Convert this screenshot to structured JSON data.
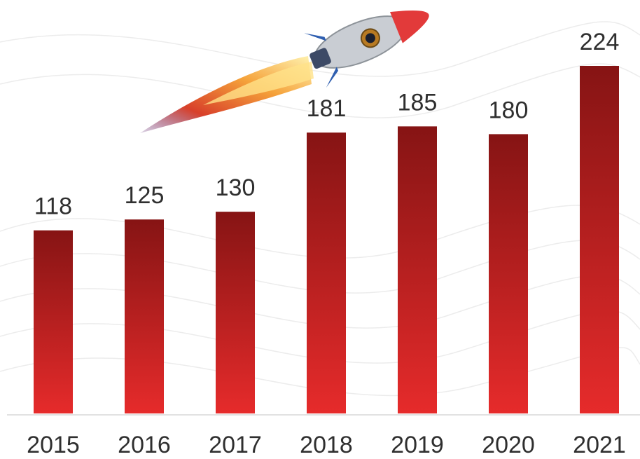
{
  "chart_data": {
    "type": "bar",
    "categories": [
      "2015",
      "2016",
      "2017",
      "2018",
      "2019",
      "2020",
      "2021"
    ],
    "values": [
      118,
      125,
      130,
      181,
      185,
      180,
      224
    ]
  }
}
